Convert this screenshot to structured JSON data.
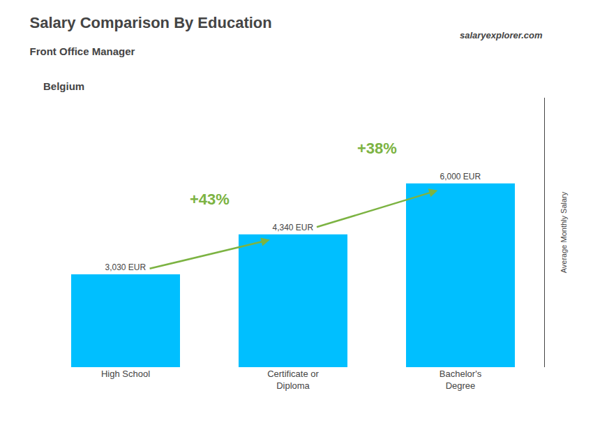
{
  "chart_data": {
    "type": "bar",
    "title": "Salary Comparison By Education",
    "subtitle": "Front Office Manager",
    "annotations": [
      "Belgium",
      "salaryexplorer.com"
    ],
    "change_labels": [
      "+43%",
      "+38%"
    ],
    "ylabel": "Average Monthly Salary",
    "categories": [
      "High School",
      "Certificate or\nDiploma",
      "Bachelor's\nDegree"
    ],
    "values": [
      3030,
      4340,
      6000
    ],
    "value_labels": [
      "3,030 EUR",
      "4,340 EUR",
      "6,000 EUR"
    ],
    "data_labels": true,
    "color": "#00bfff",
    "ylim": [
      0,
      8800
    ],
    "tick_labels": "x",
    "grid": false
  }
}
